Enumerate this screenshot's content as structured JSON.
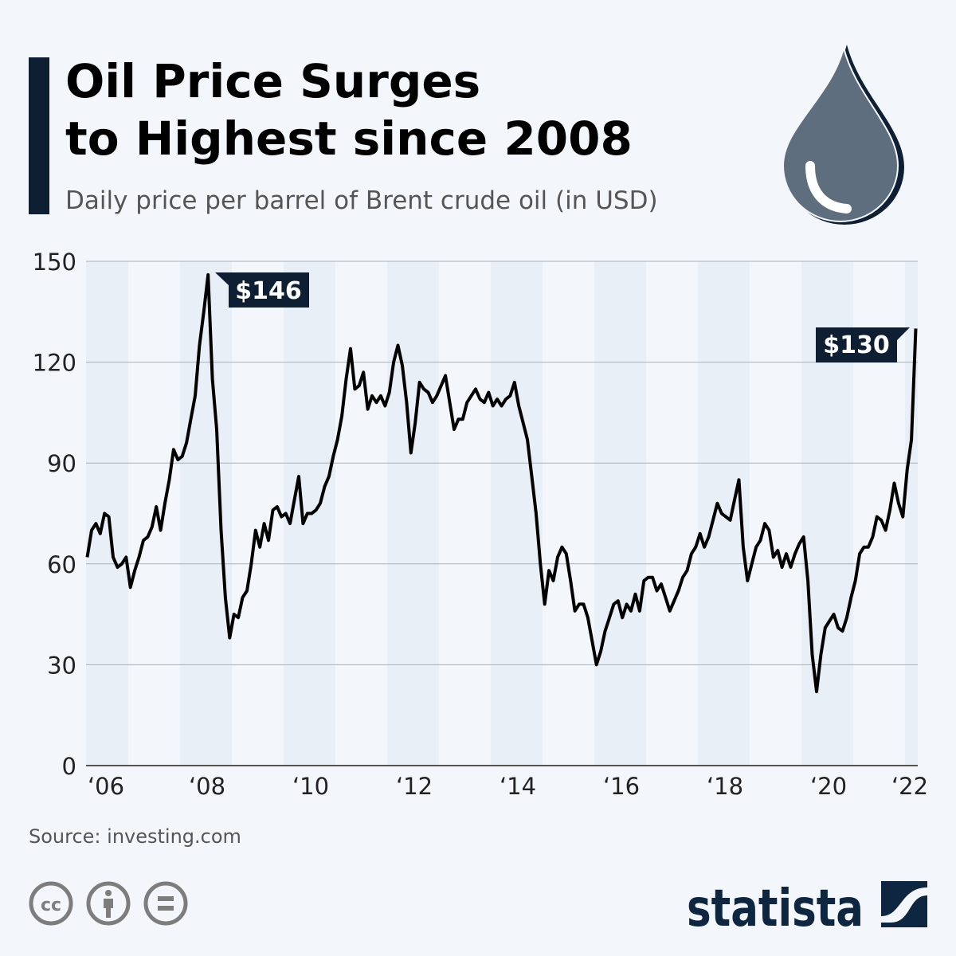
{
  "title_line1": "Oil Price Surges",
  "title_line2": "to Highest since 2008",
  "subtitle": "Daily price per barrel of Brent crude oil (in USD)",
  "source": "Source: investing.com",
  "brand": "statista",
  "icons": [
    "oil-drop-icon",
    "creative-commons-icon",
    "attribution-icon",
    "no-derivatives-icon",
    "statista-logo-icon"
  ],
  "colors": {
    "background": "#f3f7fb",
    "line": "#000000",
    "label_bg": "#0f1f33",
    "band": "#e9eff7",
    "drop": "#5f6e7e"
  },
  "chart_data": {
    "type": "line",
    "title": "Oil Price Surges to Highest since 2008",
    "ylim": [
      0,
      150
    ],
    "yticks": [
      "0",
      "30",
      "60",
      "90",
      "120",
      "150"
    ],
    "xticks": [
      "‘06",
      "‘08",
      "‘10",
      "‘12",
      "‘14",
      "‘16",
      "‘18",
      "‘20",
      "‘22"
    ],
    "grid": true,
    "annotations": [
      {
        "x": "2008-07",
        "y": 146,
        "label": "$146"
      },
      {
        "x": "2022-03",
        "y": 130,
        "label": "$130"
      }
    ],
    "x": [
      "2006-03",
      "2006-04",
      "2006-05",
      "2006-06",
      "2006-07",
      "2006-08",
      "2006-09",
      "2006-10",
      "2006-11",
      "2006-12",
      "2007-01",
      "2007-02",
      "2007-03",
      "2007-04",
      "2007-05",
      "2007-06",
      "2007-07",
      "2007-08",
      "2007-09",
      "2007-10",
      "2007-11",
      "2007-12",
      "2008-01",
      "2008-02",
      "2008-03",
      "2008-04",
      "2008-05",
      "2008-06",
      "2008-07",
      "2008-08",
      "2008-09",
      "2008-10",
      "2008-11",
      "2008-12",
      "2009-01",
      "2009-02",
      "2009-03",
      "2009-04",
      "2009-05",
      "2009-06",
      "2009-07",
      "2009-08",
      "2009-09",
      "2009-10",
      "2009-11",
      "2009-12",
      "2010-01",
      "2010-02",
      "2010-03",
      "2010-04",
      "2010-05",
      "2010-06",
      "2010-07",
      "2010-08",
      "2010-09",
      "2010-10",
      "2010-11",
      "2010-12",
      "2011-01",
      "2011-02",
      "2011-03",
      "2011-04",
      "2011-05",
      "2011-06",
      "2011-07",
      "2011-08",
      "2011-09",
      "2011-10",
      "2011-11",
      "2011-12",
      "2012-01",
      "2012-02",
      "2012-03",
      "2012-04",
      "2012-05",
      "2012-06",
      "2012-07",
      "2012-08",
      "2012-09",
      "2012-10",
      "2012-11",
      "2012-12",
      "2013-01",
      "2013-02",
      "2013-03",
      "2013-04",
      "2013-05",
      "2013-06",
      "2013-07",
      "2013-08",
      "2013-09",
      "2013-10",
      "2013-11",
      "2013-12",
      "2014-01",
      "2014-02",
      "2014-03",
      "2014-04",
      "2014-05",
      "2014-06",
      "2014-07",
      "2014-08",
      "2014-09",
      "2014-10",
      "2014-11",
      "2014-12",
      "2015-01",
      "2015-02",
      "2015-03",
      "2015-04",
      "2015-05",
      "2015-06",
      "2015-07",
      "2015-08",
      "2015-09",
      "2015-10",
      "2015-11",
      "2015-12",
      "2016-01",
      "2016-02",
      "2016-03",
      "2016-04",
      "2016-05",
      "2016-06",
      "2016-07",
      "2016-08",
      "2016-09",
      "2016-10",
      "2016-11",
      "2016-12",
      "2017-01",
      "2017-02",
      "2017-03",
      "2017-04",
      "2017-05",
      "2017-06",
      "2017-07",
      "2017-08",
      "2017-09",
      "2017-10",
      "2017-11",
      "2017-12",
      "2018-01",
      "2018-02",
      "2018-03",
      "2018-04",
      "2018-05",
      "2018-06",
      "2018-07",
      "2018-08",
      "2018-09",
      "2018-10",
      "2018-11",
      "2018-12",
      "2019-01",
      "2019-02",
      "2019-03",
      "2019-04",
      "2019-05",
      "2019-06",
      "2019-07",
      "2019-08",
      "2019-09",
      "2019-10",
      "2019-11",
      "2019-12",
      "2020-01",
      "2020-02",
      "2020-03",
      "2020-04",
      "2020-05",
      "2020-06",
      "2020-07",
      "2020-08",
      "2020-09",
      "2020-10",
      "2020-11",
      "2020-12",
      "2021-01",
      "2021-02",
      "2021-03",
      "2021-04",
      "2021-05",
      "2021-06",
      "2021-07",
      "2021-08",
      "2021-09",
      "2021-10",
      "2021-11",
      "2021-12",
      "2022-01",
      "2022-02",
      "2022-03"
    ],
    "values": [
      62,
      70,
      72,
      69,
      75,
      74,
      62,
      59,
      60,
      62,
      53,
      58,
      62,
      67,
      68,
      71,
      77,
      70,
      78,
      85,
      94,
      91,
      92,
      96,
      103,
      110,
      125,
      135,
      146,
      115,
      100,
      70,
      50,
      38,
      45,
      44,
      50,
      52,
      60,
      70,
      65,
      72,
      67,
      76,
      77,
      74,
      75,
      72,
      79,
      86,
      72,
      75,
      75,
      76,
      78,
      83,
      86,
      92,
      97,
      104,
      115,
      124,
      112,
      113,
      117,
      106,
      110,
      108,
      110,
      107,
      111,
      120,
      125,
      119,
      108,
      93,
      102,
      114,
      112,
      111,
      108,
      110,
      113,
      116,
      108,
      100,
      103,
      103,
      108,
      110,
      112,
      109,
      108,
      111,
      107,
      109,
      107,
      109,
      110,
      114,
      107,
      102,
      97,
      86,
      75,
      60,
      48,
      58,
      55,
      62,
      65,
      63,
      55,
      46,
      48,
      48,
      44,
      37,
      30,
      34,
      40,
      44,
      48,
      49,
      44,
      48,
      46,
      51,
      46,
      55,
      56,
      56,
      52,
      54,
      50,
      46,
      49,
      52,
      56,
      58,
      63,
      65,
      69,
      65,
      68,
      73,
      78,
      75,
      74,
      73,
      79,
      85,
      65,
      55,
      60,
      65,
      67,
      72,
      70,
      62,
      64,
      59,
      63,
      59,
      63,
      66,
      68,
      55,
      33,
      22,
      33,
      41,
      43,
      45,
      41,
      40,
      44,
      50,
      55,
      63,
      65,
      65,
      68,
      74,
      73,
      70,
      76,
      84,
      78,
      74,
      88,
      97,
      130
    ]
  }
}
